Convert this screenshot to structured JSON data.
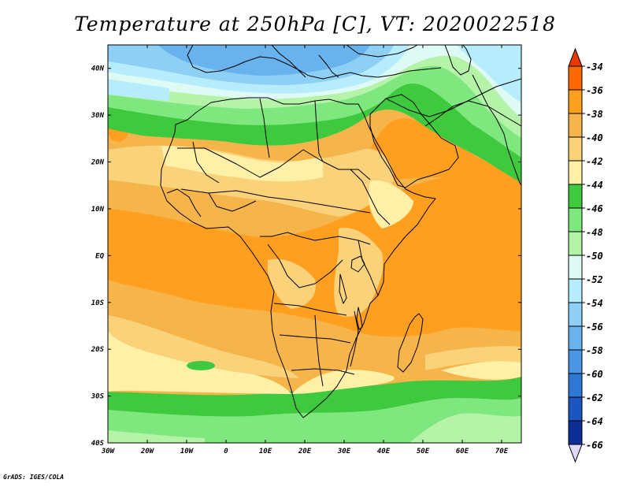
{
  "title": "Temperature at 250hPa [C], VT: 2020022518",
  "credit": "GrADS: IGES/COLA",
  "map": {
    "lon_range": [
      -30,
      75
    ],
    "lat_range": [
      -40,
      45
    ],
    "lon_ticks": [
      {
        "value": -30,
        "label": "30W"
      },
      {
        "value": -20,
        "label": "20W"
      },
      {
        "value": -10,
        "label": "10W"
      },
      {
        "value": 0,
        "label": "0"
      },
      {
        "value": 10,
        "label": "10E"
      },
      {
        "value": 20,
        "label": "20E"
      },
      {
        "value": 30,
        "label": "30E"
      },
      {
        "value": 40,
        "label": "40E"
      },
      {
        "value": 50,
        "label": "50E"
      },
      {
        "value": 60,
        "label": "60E"
      },
      {
        "value": 70,
        "label": "70E"
      }
    ],
    "lat_ticks": [
      {
        "value": -40,
        "label": "40S"
      },
      {
        "value": -30,
        "label": "30S"
      },
      {
        "value": -20,
        "label": "20S"
      },
      {
        "value": -10,
        "label": "10S"
      },
      {
        "value": 0,
        "label": "EQ"
      },
      {
        "value": 10,
        "label": "10N"
      },
      {
        "value": 20,
        "label": "20N"
      },
      {
        "value": 30,
        "label": "30N"
      },
      {
        "value": 40,
        "label": "40N"
      }
    ],
    "features": [
      "coastlines",
      "country-borders",
      "lakes"
    ]
  },
  "colorbar": {
    "labels": [
      "-34",
      "-36",
      "-38",
      "-40",
      "-42",
      "-44",
      "-46",
      "-48",
      "-50",
      "-52",
      "-54",
      "-56",
      "-58",
      "-60",
      "-62",
      "-64",
      "-66"
    ],
    "colors": [
      "#e83a00",
      "#ff6a00",
      "#ff9f20",
      "#f5b54a",
      "#fad27a",
      "#fff0a8",
      "#3fc93f",
      "#7ee87e",
      "#b4f3a8",
      "#ddfaf4",
      "#b6ecfb",
      "#8ecff5",
      "#68b3ee",
      "#4a96e4",
      "#2f78d6",
      "#1a55c0",
      "#0d2f95",
      "#10106e"
    ],
    "over_color": "#e83a00",
    "under_color": "#e0d9fa"
  },
  "field_colors": {
    "band_m36": "#ff9f20",
    "band_m38": "#f5b54a",
    "band_m40": "#fad27a",
    "band_m42": "#fff0a8",
    "band_m44": "#3fc93f",
    "band_m46": "#7ee87e",
    "band_m48": "#b4f3a8",
    "band_m50": "#ddfaf4",
    "band_m52": "#b6ecfb",
    "band_m54": "#8ecff5",
    "band_m56": "#68b3ee"
  }
}
